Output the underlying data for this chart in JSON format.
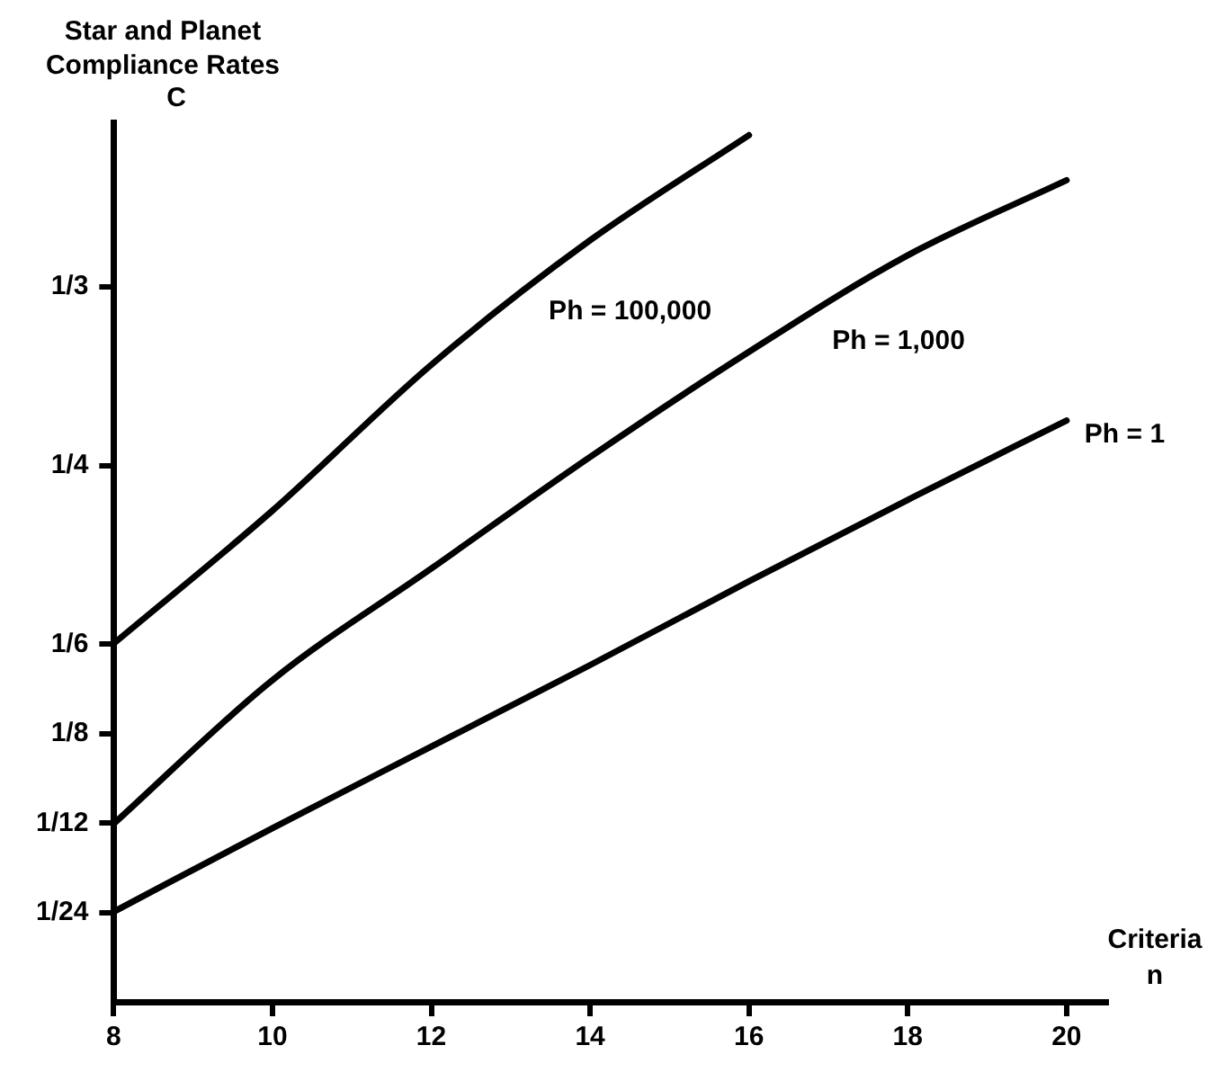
{
  "chart_data": {
    "type": "line",
    "title": "Star and Planet Compliance Rates",
    "ylabel": "C",
    "xlabel": "Criteria n",
    "x": [
      8,
      10,
      12,
      14,
      16,
      18,
      20
    ],
    "series": [
      {
        "name": "Ph = 100,000",
        "color": "#000000",
        "x": [
          8,
          10,
          12,
          14,
          16
        ],
        "values": [
          0.167,
          0.229,
          0.297,
          0.355,
          0.404
        ]
      },
      {
        "name": "Ph = 1,000",
        "color": "#000000",
        "values": [
          0.083,
          0.15,
          0.202,
          0.254,
          0.303,
          0.348,
          0.383
        ]
      },
      {
        "name": "Ph = 1",
        "color": "#000000",
        "values": [
          0.042,
          0.081,
          0.119,
          0.157,
          0.196,
          0.234,
          0.271
        ]
      }
    ],
    "xlim": [
      8,
      20.5
    ],
    "xticks": [
      8,
      10,
      12,
      14,
      16,
      18,
      20
    ],
    "ylim": [
      0,
      0.41
    ],
    "yticks": [
      {
        "value": 0.04167,
        "label": "1/24"
      },
      {
        "value": 0.08333,
        "label": "1/12"
      },
      {
        "value": 0.125,
        "label": "1/8"
      },
      {
        "value": 0.16667,
        "label": "1/6"
      },
      {
        "value": 0.25,
        "label": "1/4"
      },
      {
        "value": 0.33333,
        "label": "1/3"
      }
    ],
    "grid": false,
    "legend": false,
    "marker": "none",
    "line_style": "solid"
  }
}
